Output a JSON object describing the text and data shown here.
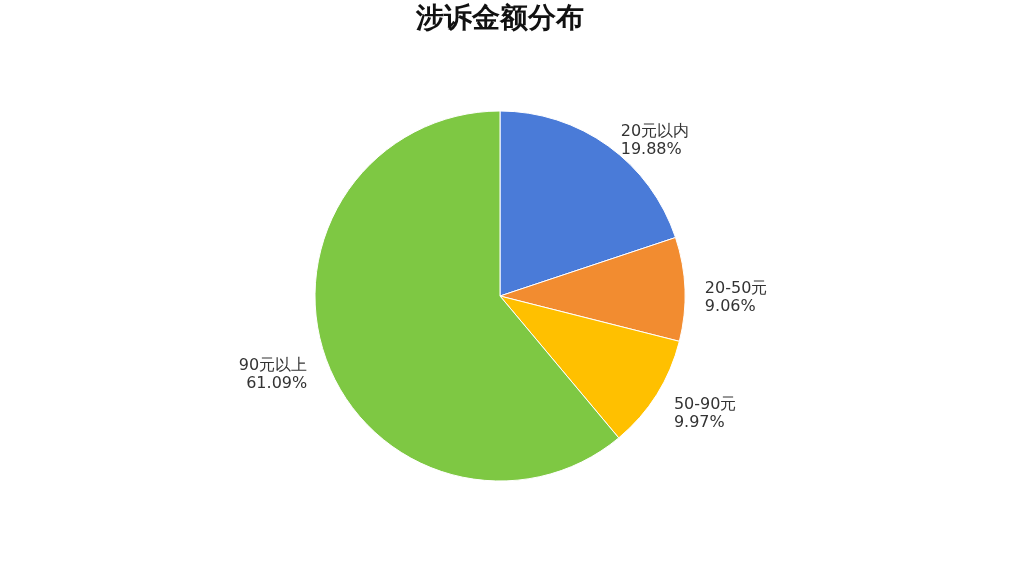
{
  "chart_data": {
    "type": "pie",
    "title": "涉诉金额分布",
    "categories": [
      "20元以内",
      "20-50元",
      "50-90元",
      "90元以上"
    ],
    "values": [
      19.88,
      9.06,
      9.97,
      61.09
    ],
    "value_labels": [
      "19.88%",
      "9.06%",
      "9.97%",
      "61.09%"
    ],
    "colors": [
      "#4a7bd8",
      "#f28c30",
      "#ffc000",
      "#7ec843"
    ],
    "legend": false
  }
}
